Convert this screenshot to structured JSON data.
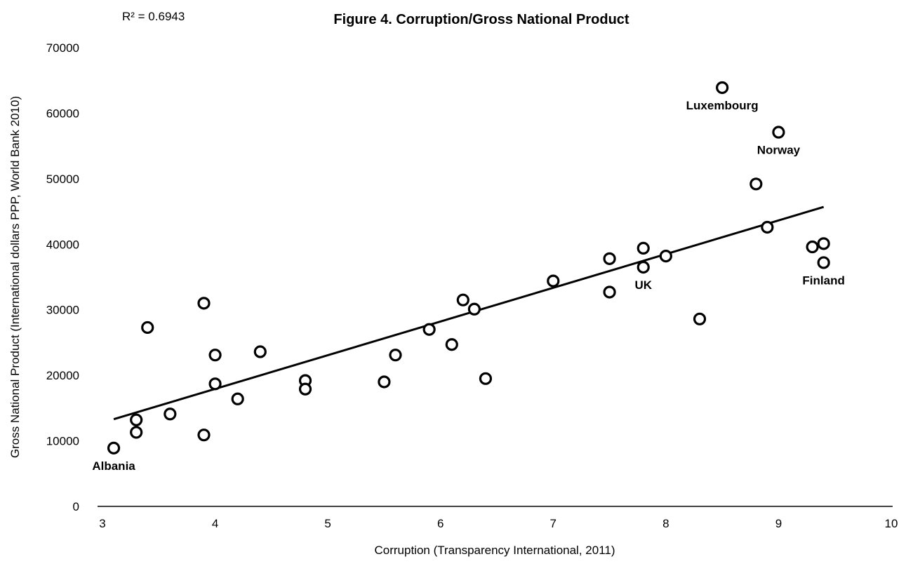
{
  "chart_data": {
    "type": "scatter",
    "title": "Figure 4. Corruption/Gross National Product",
    "annotation_r2": "R² = 0.6943",
    "xlabel": "Corruption (Transparency International, 2011)",
    "ylabel": "Gross National Product (International dollars PPP, World Bank 2010)",
    "xlim": [
      3,
      10
    ],
    "ylim": [
      0,
      70000
    ],
    "xticks": [
      3,
      4,
      5,
      6,
      7,
      8,
      9,
      10
    ],
    "yticks": [
      0,
      10000,
      20000,
      30000,
      40000,
      50000,
      60000,
      70000
    ],
    "grid": false,
    "trendline": {
      "x": [
        3.1,
        9.4
      ],
      "y": [
        13300,
        45700
      ]
    },
    "points": [
      {
        "x": 3.1,
        "y": 8900,
        "label": "Albania"
      },
      {
        "x": 3.3,
        "y": 13200,
        "label": ""
      },
      {
        "x": 3.3,
        "y": 11300,
        "label": ""
      },
      {
        "x": 3.4,
        "y": 27300,
        "label": ""
      },
      {
        "x": 3.6,
        "y": 14100,
        "label": ""
      },
      {
        "x": 3.9,
        "y": 31000,
        "label": ""
      },
      {
        "x": 3.9,
        "y": 10900,
        "label": ""
      },
      {
        "x": 4.0,
        "y": 23100,
        "label": ""
      },
      {
        "x": 4.0,
        "y": 18700,
        "label": ""
      },
      {
        "x": 4.2,
        "y": 16400,
        "label": ""
      },
      {
        "x": 4.4,
        "y": 23600,
        "label": ""
      },
      {
        "x": 4.8,
        "y": 19200,
        "label": ""
      },
      {
        "x": 4.8,
        "y": 17900,
        "label": ""
      },
      {
        "x": 5.5,
        "y": 19000,
        "label": ""
      },
      {
        "x": 5.6,
        "y": 23100,
        "label": ""
      },
      {
        "x": 5.9,
        "y": 27000,
        "label": ""
      },
      {
        "x": 6.1,
        "y": 24700,
        "label": ""
      },
      {
        "x": 6.2,
        "y": 31500,
        "label": ""
      },
      {
        "x": 6.3,
        "y": 30100,
        "label": ""
      },
      {
        "x": 6.4,
        "y": 19500,
        "label": ""
      },
      {
        "x": 7.0,
        "y": 34400,
        "label": ""
      },
      {
        "x": 7.5,
        "y": 37800,
        "label": ""
      },
      {
        "x": 7.5,
        "y": 32700,
        "label": ""
      },
      {
        "x": 7.8,
        "y": 39400,
        "label": ""
      },
      {
        "x": 7.8,
        "y": 36500,
        "label": "UK"
      },
      {
        "x": 8.0,
        "y": 38200,
        "label": ""
      },
      {
        "x": 8.3,
        "y": 28600,
        "label": ""
      },
      {
        "x": 8.5,
        "y": 63900,
        "label": "Luxembourg"
      },
      {
        "x": 8.8,
        "y": 49200,
        "label": ""
      },
      {
        "x": 8.9,
        "y": 42600,
        "label": ""
      },
      {
        "x": 9.0,
        "y": 57100,
        "label": "Norway"
      },
      {
        "x": 9.3,
        "y": 39600,
        "label": ""
      },
      {
        "x": 9.4,
        "y": 40100,
        "label": ""
      },
      {
        "x": 9.4,
        "y": 37200,
        "label": "Finland"
      }
    ]
  }
}
